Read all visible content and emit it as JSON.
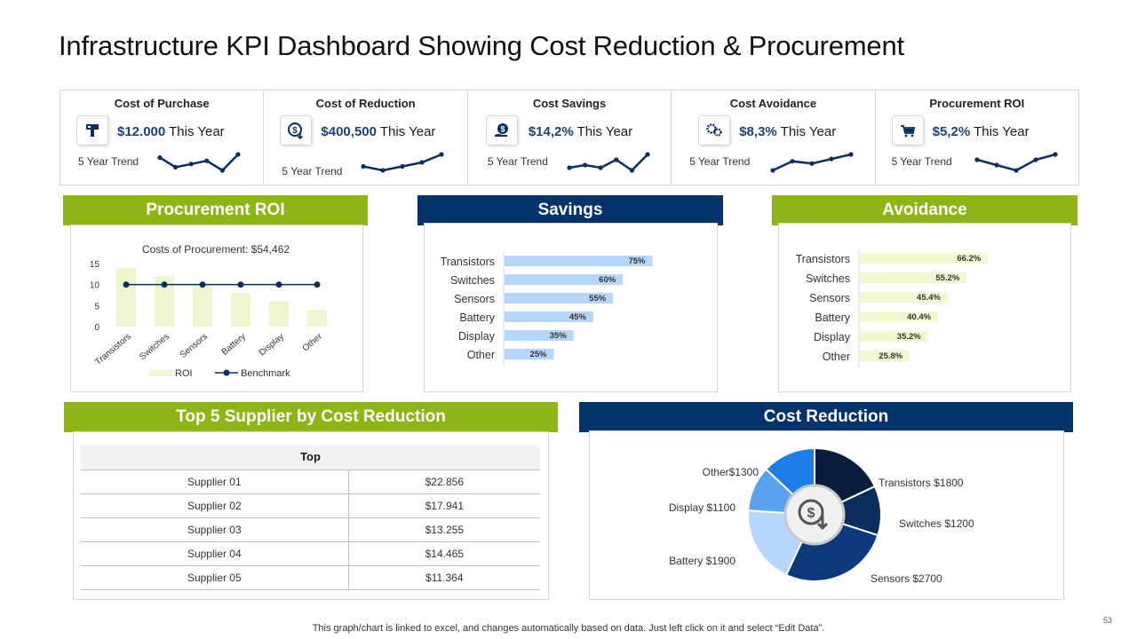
{
  "title": "Infrastructure KPI Dashboard Showing Cost Reduction & Procurement",
  "kpis": [
    {
      "name": "Cost of Purchase",
      "value": "$12.000",
      "suffix": " This Year",
      "trend_label": "5 Year Trend",
      "icon": "purchase-icon",
      "trend": [
        6,
        3,
        4,
        5,
        2,
        7
      ]
    },
    {
      "name": "Cost of Reduction",
      "value": "$400,500",
      "suffix": " This Year",
      "trend_label": "5 Year Trend",
      "icon": "dollar-down-icon",
      "trend": [
        4,
        3,
        4,
        5,
        7
      ]
    },
    {
      "name": "Cost Savings",
      "value": "$14,2%",
      "suffix": " This Year",
      "trend_label": "5 Year Trend",
      "icon": "hand-dollar-icon",
      "trend": [
        3,
        4,
        3,
        6,
        2,
        8
      ]
    },
    {
      "name": "Cost Avoidance",
      "value": "$8,3%",
      "suffix": " This Year",
      "trend_label": "5 Year Trend",
      "icon": "gears-icon",
      "trend": [
        1,
        5,
        4,
        6,
        8
      ]
    },
    {
      "name": "Procurement ROI",
      "value": "$5,2%",
      "suffix": " This Year",
      "trend_label": "5 Year Trend",
      "icon": "cart-icon",
      "trend": [
        5,
        4,
        3,
        5,
        6
      ]
    }
  ],
  "sections": {
    "roi": "Procurement ROI",
    "savings": "Savings",
    "avoidance": "Avoidance",
    "suppliers": "Top 5 Supplier by Cost Reduction",
    "cost_reduction": "Cost Reduction"
  },
  "chart_data": [
    {
      "id": "procurement-roi",
      "type": "bar",
      "title": "Costs of Procurement: $54,462",
      "categories": [
        "Transistors",
        "Switches",
        "Sensors",
        "Battery",
        "Display",
        "Other"
      ],
      "series": [
        {
          "name": "ROI",
          "type": "bar",
          "values": [
            14,
            12,
            10,
            8,
            6,
            4
          ]
        },
        {
          "name": "Benchmark",
          "type": "line",
          "values": [
            10,
            10,
            10,
            10,
            10,
            10
          ]
        }
      ],
      "ylim": [
        0,
        15
      ],
      "yticks": [
        0,
        5,
        10,
        15
      ]
    },
    {
      "id": "savings",
      "type": "bar",
      "orientation": "horizontal",
      "categories": [
        "Transistors",
        "Switches",
        "Sensors",
        "Battery",
        "Display",
        "Other"
      ],
      "values": [
        75,
        60,
        55,
        45,
        35,
        25
      ],
      "labels": [
        "75%",
        "60%",
        "55%",
        "45%",
        "35%",
        "25%"
      ],
      "xlim": [
        0,
        100
      ]
    },
    {
      "id": "avoidance",
      "type": "bar",
      "orientation": "horizontal",
      "categories": [
        "Transistors",
        "Switches",
        "Sensors",
        "Battery",
        "Display",
        "Other"
      ],
      "values": [
        66.2,
        55.2,
        45.4,
        40.4,
        35.2,
        25.8
      ],
      "labels": [
        "66.2%",
        "55.2%",
        "45.4%",
        "40.4%",
        "35.2%",
        "25.8%"
      ],
      "xlim": [
        0,
        100
      ]
    },
    {
      "id": "cost-reduction",
      "type": "pie",
      "donut": true,
      "slices": [
        {
          "name": "Transistors",
          "value": 1800,
          "label": "Transistors $1800",
          "color": "#0b1d3f"
        },
        {
          "name": "Switches",
          "value": 1200,
          "label": "Switches $1200",
          "color": "#0d2d5e"
        },
        {
          "name": "Sensors",
          "value": 2700,
          "label": "Sensors $2700",
          "color": "#0c3a7d"
        },
        {
          "name": "Battery",
          "value": 1900,
          "label": "Battery $1900",
          "color": "#b7d6fb"
        },
        {
          "name": "Display",
          "value": 1100,
          "label": "Display $1100",
          "color": "#5aa2f0"
        },
        {
          "name": "Other",
          "value": 1300,
          "label": "Other$1300",
          "color": "#1c7fe8"
        }
      ]
    }
  ],
  "supplier_table": {
    "header": "Top",
    "rows": [
      {
        "name": "Supplier 01",
        "value": "$22.856"
      },
      {
        "name": "Supplier 02",
        "value": "$17.941"
      },
      {
        "name": "Supplier 03",
        "value": "$13.255"
      },
      {
        "name": "Supplier 04",
        "value": "$14.465"
      },
      {
        "name": "Supplier 05",
        "value": "$11.364"
      }
    ]
  },
  "footer": "This graph/chart is linked to excel, and changes automatically based on data. Just left click on it and select “Edit Data”.",
  "page_number": "53",
  "colors": {
    "green": "#8cb515",
    "navy": "#03336b",
    "roi_bar": "#eef6d0",
    "benchmark": "#0d2d5e",
    "savings_bar": "#b7d6fb",
    "avoidance_bar": "#f1f9d0",
    "spark": "#0d2d5e"
  }
}
